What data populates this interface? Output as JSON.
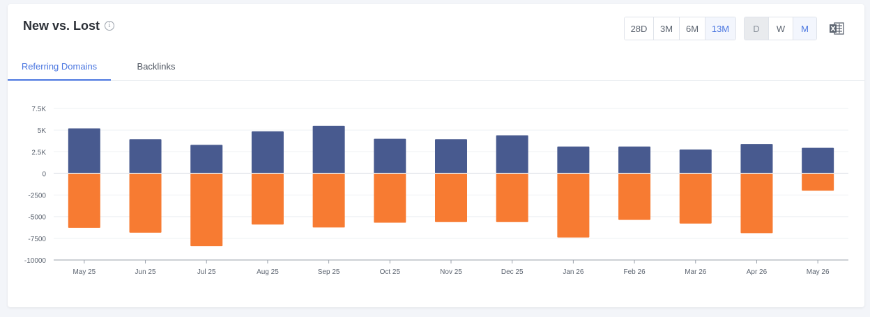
{
  "header": {
    "title": "New vs. Lost",
    "info_icon": "info-icon"
  },
  "range_buttons": [
    {
      "label": "28D",
      "active": false
    },
    {
      "label": "3M",
      "active": false
    },
    {
      "label": "6M",
      "active": false
    },
    {
      "label": "13M",
      "active": true
    }
  ],
  "granularity_buttons": [
    {
      "label": "D",
      "active": false,
      "disabled": true
    },
    {
      "label": "W",
      "active": false,
      "disabled": false
    },
    {
      "label": "M",
      "active": true,
      "disabled": false
    }
  ],
  "export_icon": "excel-icon",
  "tabs": [
    {
      "label": "Referring Domains",
      "active": true
    },
    {
      "label": "Backlinks",
      "active": false
    }
  ],
  "colors": {
    "new": "#485a8f",
    "lost": "#f77b32",
    "accent": "#4a76e0"
  },
  "chart_data": {
    "type": "bar",
    "stacked": true,
    "categories": [
      "May 25",
      "Jun 25",
      "Jul 25",
      "Aug 25",
      "Sep 25",
      "Oct 25",
      "Nov 25",
      "Dec 25",
      "Jan 26",
      "Feb 26",
      "Mar 26",
      "Apr 26",
      "May 26"
    ],
    "series": [
      {
        "values": [
          5200,
          3950,
          3300,
          4850,
          5500,
          4000,
          3950,
          4400,
          3100,
          3100,
          2750,
          3400,
          2950
        ],
        "color": "#485a8f"
      },
      {
        "values": [
          -6300,
          -6850,
          -8400,
          -5900,
          -6250,
          -5700,
          -5600,
          -5600,
          -7400,
          -5350,
          -5800,
          -6900,
          -2000
        ],
        "color": "#f77b32"
      }
    ],
    "yticks": [
      7500,
      5000,
      2500,
      0,
      -2500,
      -5000,
      -7500,
      -10000
    ],
    "ytick_labels": [
      "7.5K",
      "5K",
      "2.5K",
      "0",
      "-2500",
      "-5000",
      "-7500",
      "-10000"
    ],
    "ylim": [
      -10000,
      7500
    ],
    "grid": true
  }
}
